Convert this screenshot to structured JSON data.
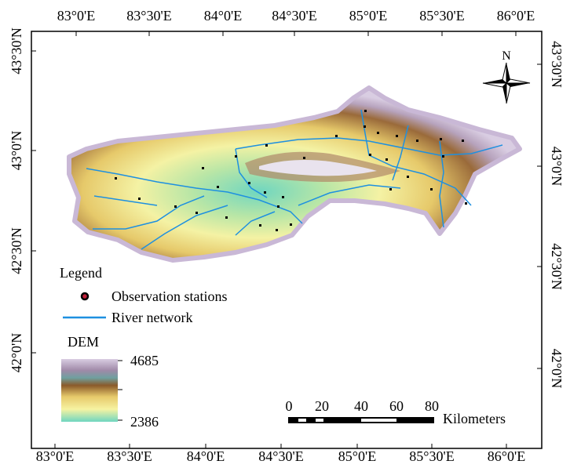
{
  "axes": {
    "top": [
      "83°0'E",
      "83°30'E",
      "84°0'E",
      "84°30'E",
      "85°0'E",
      "85°30'E",
      "86°0'E"
    ],
    "bottom": [
      "83°0'E",
      "83°30'E",
      "84°0'E",
      "84°30'E",
      "85°0'E",
      "85°30'E",
      "86°0'E"
    ],
    "left": [
      "43°30'N",
      "43°0'N",
      "42°30'N",
      "42°0'N"
    ],
    "right": [
      "43°30'N",
      "43°0'N",
      "42°30'N",
      "42°0'N"
    ]
  },
  "north": "N",
  "legend": {
    "title": "Legend",
    "items": [
      "Observation stations",
      "River network"
    ],
    "dem_title": "DEM",
    "dem_max": 4685,
    "dem_min": 2386
  },
  "scale_bar": {
    "ticks": [
      0,
      20,
      40,
      60,
      80
    ],
    "unit": "Kilometers"
  }
}
